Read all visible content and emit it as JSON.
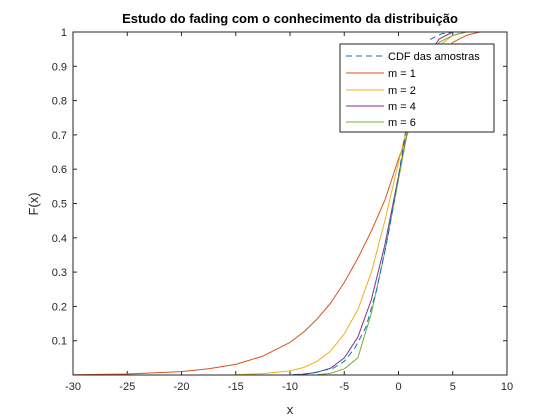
{
  "chart_data": {
    "type": "line",
    "title": "Estudo do fading com o conhecimento da distribuição",
    "xlabel": "x",
    "ylabel": "F(x)",
    "xlim": [
      -30,
      10
    ],
    "ylim": [
      0,
      1
    ],
    "xticks": [
      -30,
      -25,
      -20,
      -15,
      -10,
      -5,
      0,
      5,
      10
    ],
    "xtick_labels": [
      "-30",
      "-25",
      "-20",
      "-15",
      "-10",
      "-5",
      "0",
      "5",
      "10"
    ],
    "yticks": [
      0.1,
      0.2,
      0.3,
      0.4,
      0.5,
      0.6,
      0.7,
      0.8,
      0.9,
      1
    ],
    "ytick_labels": [
      "0.1",
      "0.2",
      "0.3",
      "0.4",
      "0.5",
      "0.6",
      "0.7",
      "0.8",
      "0.9",
      "1"
    ],
    "grid": false,
    "legend_position": "top-right",
    "series": [
      {
        "name": "CDF das amostras",
        "color": "#0072BD",
        "dashed": true,
        "x": [
          -30,
          -25,
          -20,
          -15,
          -10,
          -8,
          -6,
          -5,
          -4,
          -3,
          -2,
          -1,
          0,
          1,
          2,
          3,
          4,
          5,
          6
        ],
        "y": [
          0.0,
          0.0,
          0.0,
          0.0,
          0.0,
          0.005,
          0.02,
          0.04,
          0.08,
          0.14,
          0.25,
          0.4,
          0.58,
          0.78,
          0.92,
          0.98,
          0.995,
          1.0,
          1.0
        ]
      },
      {
        "name": "m = 1",
        "color": "#D95319",
        "dashed": false,
        "x": [
          -30,
          -25,
          -20,
          -17.5,
          -15,
          -12.5,
          -10,
          -8.75,
          -7.5,
          -6.25,
          -5,
          -3.75,
          -2.5,
          -1.25,
          0,
          1.25,
          2.5,
          3.75,
          5,
          6.25,
          7.5,
          8.75,
          10
        ],
        "y": [
          0.001,
          0.003,
          0.01,
          0.018,
          0.031,
          0.055,
          0.095,
          0.125,
          0.163,
          0.21,
          0.27,
          0.34,
          0.42,
          0.51,
          0.63,
          0.74,
          0.84,
          0.92,
          0.97,
          0.99,
          1.0,
          1.0,
          1.0
        ]
      },
      {
        "name": "m = 2",
        "color": "#EDB120",
        "dashed": false,
        "x": [
          -15,
          -12.5,
          -10,
          -8.75,
          -7.5,
          -6.25,
          -5,
          -3.75,
          -2.5,
          -1.25,
          0,
          1.25,
          2.5,
          3.75,
          5,
          6.25,
          7.5,
          8.75,
          10
        ],
        "y": [
          0.001,
          0.004,
          0.012,
          0.022,
          0.04,
          0.07,
          0.12,
          0.19,
          0.3,
          0.45,
          0.62,
          0.78,
          0.9,
          0.96,
          0.99,
          1.0,
          1.0,
          1.0,
          1.0
        ]
      },
      {
        "name": "m = 4",
        "color": "#7E2F8E",
        "dashed": false,
        "x": [
          -10,
          -8.75,
          -7.5,
          -6.25,
          -5,
          -3.75,
          -2.5,
          -1.25,
          0,
          1.25,
          2.5,
          3.75,
          5,
          6.25,
          7.5
        ],
        "y": [
          0.0,
          0.002,
          0.008,
          0.02,
          0.05,
          0.11,
          0.22,
          0.38,
          0.58,
          0.78,
          0.92,
          0.98,
          1.0,
          1.0,
          1.0
        ]
      },
      {
        "name": "m = 6",
        "color": "#77AC30",
        "dashed": false,
        "x": [
          -7.5,
          -6.25,
          -5,
          -3.75,
          -2.5,
          -1.25,
          0,
          1.25,
          2.5,
          3.75,
          5,
          6.25,
          7.5
        ],
        "y": [
          0.001,
          0.005,
          0.018,
          0.05,
          0.18,
          0.36,
          0.57,
          0.78,
          0.91,
          0.97,
          0.99,
          1.0,
          1.0
        ]
      }
    ]
  }
}
